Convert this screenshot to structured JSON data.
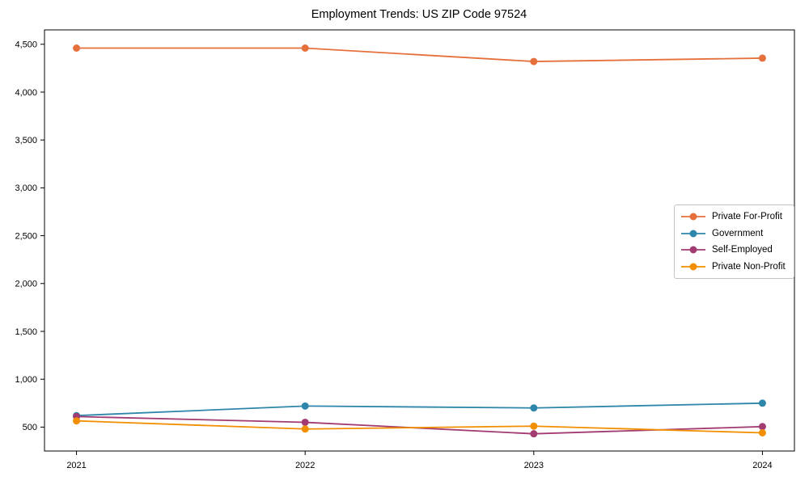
{
  "chart_data": {
    "type": "line",
    "title": "Employment Trends: US ZIP Code 97524",
    "x": [
      2021,
      2022,
      2023,
      2024
    ],
    "x_tick_labels": [
      "2021",
      "2022",
      "2023",
      "2024"
    ],
    "y_ticks": {
      "values": [
        500,
        1000,
        1500,
        2000,
        2500,
        3000,
        3500,
        4000,
        4500
      ],
      "labels": [
        "500",
        "1,000",
        "1,500",
        "2,000",
        "2,500",
        "3,000",
        "3,500",
        "4,000",
        "4,500"
      ]
    },
    "series": [
      {
        "name": "Private For-Profit",
        "color": "#E5703C",
        "values": [
          4460,
          4460,
          4320,
          4355
        ]
      },
      {
        "name": "Government",
        "color": "#2E86AB",
        "values": [
          620,
          720,
          700,
          750
        ]
      },
      {
        "name": "Self-Employed",
        "color": "#A23B72",
        "values": [
          610,
          550,
          430,
          505
        ]
      },
      {
        "name": "Private Non-Profit",
        "color": "#F18F01",
        "values": [
          565,
          480,
          510,
          440
        ]
      }
    ],
    "xlim": [
      2020.86,
      2024.14
    ],
    "ylim": [
      250,
      4650
    ],
    "grid": false,
    "legend_position": "center-right",
    "marker": "circle",
    "axis_color": "#000000",
    "background": "#ffffff"
  }
}
